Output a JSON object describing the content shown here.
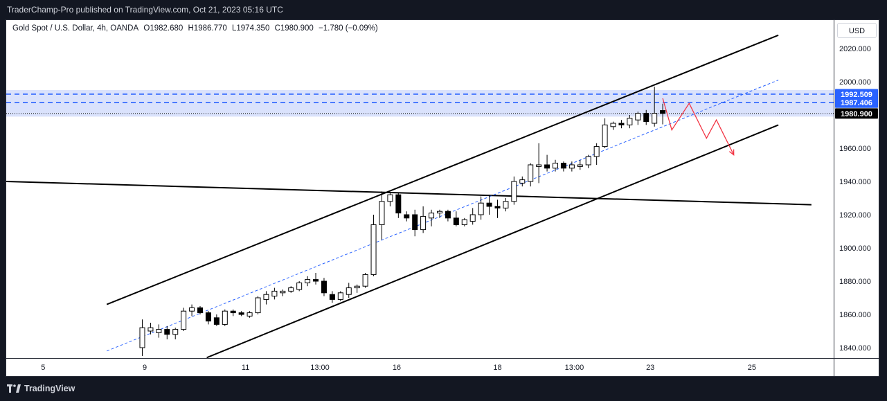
{
  "header": {
    "published_by": "TraderChamp-Pro published on TradingView.com, Oct 21, 2023 05:16 UTC"
  },
  "legend": {
    "symbol": "Gold Spot / U.S. Dollar, 4h, OANDA",
    "open": "O1982.680",
    "high": "H1986.770",
    "low": "L1974.350",
    "close": "C1980.900",
    "change": "−1.780 (−0.09%)"
  },
  "currency": "USD",
  "footer": {
    "brand": "TradingView"
  },
  "colors": {
    "up": "#ffffff",
    "down": "#000000",
    "zone": "#d6dffc",
    "zone_line": "#2962ff",
    "projection": "#f23645",
    "trendline": "#000000",
    "midline": "#2962ff"
  },
  "chart_data": {
    "type": "candlestick",
    "title": "Gold Spot / U.S. Dollar, 4h, OANDA",
    "ylabel": "USD",
    "ylim": [
      1835,
      2032
    ],
    "yticks": [
      "1840.000",
      "1860.000",
      "1880.000",
      "1900.000",
      "1920.000",
      "1940.000",
      "1960.000",
      "1980.000",
      "2000.000",
      "2020.000"
    ],
    "xticks": [
      {
        "label": "5",
        "bar": -12.0
      },
      {
        "label": "9",
        "bar": 0.3
      },
      {
        "label": "11",
        "bar": 12.5
      },
      {
        "label": "13:00",
        "bar": 21.5
      },
      {
        "label": "16",
        "bar": 30.8
      },
      {
        "label": "18",
        "bar": 43.0
      },
      {
        "label": "13:00",
        "bar": 52.3
      },
      {
        "label": "23",
        "bar": 61.5
      },
      {
        "label": "25",
        "bar": 73.8
      }
    ],
    "candles": [
      {
        "o": 1840,
        "h": 1857,
        "l": 1835,
        "c": 1852
      },
      {
        "o": 1850,
        "h": 1855,
        "l": 1848,
        "c": 1852
      },
      {
        "o": 1849,
        "h": 1854,
        "l": 1846,
        "c": 1851
      },
      {
        "o": 1851,
        "h": 1853,
        "l": 1845,
        "c": 1848
      },
      {
        "o": 1848,
        "h": 1852,
        "l": 1845,
        "c": 1851
      },
      {
        "o": 1851,
        "h": 1864,
        "l": 1850,
        "c": 1862
      },
      {
        "o": 1862,
        "h": 1866,
        "l": 1859,
        "c": 1864
      },
      {
        "o": 1864,
        "h": 1865,
        "l": 1860,
        "c": 1861
      },
      {
        "o": 1861,
        "h": 1862,
        "l": 1854,
        "c": 1856
      },
      {
        "o": 1858,
        "h": 1860,
        "l": 1853,
        "c": 1854
      },
      {
        "o": 1854,
        "h": 1863,
        "l": 1853,
        "c": 1862
      },
      {
        "o": 1862,
        "h": 1863,
        "l": 1859,
        "c": 1861
      },
      {
        "o": 1861,
        "h": 1862,
        "l": 1859,
        "c": 1860
      },
      {
        "o": 1859,
        "h": 1862,
        "l": 1858,
        "c": 1861
      },
      {
        "o": 1861,
        "h": 1871,
        "l": 1860,
        "c": 1870
      },
      {
        "o": 1869,
        "h": 1874,
        "l": 1866,
        "c": 1872
      },
      {
        "o": 1871,
        "h": 1876,
        "l": 1869,
        "c": 1874
      },
      {
        "o": 1873,
        "h": 1875,
        "l": 1871,
        "c": 1874
      },
      {
        "o": 1874,
        "h": 1877,
        "l": 1873,
        "c": 1876
      },
      {
        "o": 1875,
        "h": 1880,
        "l": 1874,
        "c": 1879
      },
      {
        "o": 1879,
        "h": 1883,
        "l": 1877,
        "c": 1881
      },
      {
        "o": 1881,
        "h": 1885,
        "l": 1878,
        "c": 1880
      },
      {
        "o": 1880,
        "h": 1882,
        "l": 1871,
        "c": 1873
      },
      {
        "o": 1872,
        "h": 1874,
        "l": 1867,
        "c": 1869
      },
      {
        "o": 1869,
        "h": 1874,
        "l": 1868,
        "c": 1873
      },
      {
        "o": 1872,
        "h": 1879,
        "l": 1870,
        "c": 1876
      },
      {
        "o": 1876,
        "h": 1878,
        "l": 1873,
        "c": 1877
      },
      {
        "o": 1877,
        "h": 1885,
        "l": 1876,
        "c": 1884
      },
      {
        "o": 1884,
        "h": 1920,
        "l": 1883,
        "c": 1914
      },
      {
        "o": 1914,
        "h": 1934,
        "l": 1905,
        "c": 1928
      },
      {
        "o": 1928,
        "h": 1933,
        "l": 1925,
        "c": 1932
      },
      {
        "o": 1932,
        "h": 1933,
        "l": 1918,
        "c": 1921
      },
      {
        "o": 1920,
        "h": 1922,
        "l": 1916,
        "c": 1918
      },
      {
        "o": 1920,
        "h": 1923,
        "l": 1907,
        "c": 1911
      },
      {
        "o": 1911,
        "h": 1925,
        "l": 1909,
        "c": 1919
      },
      {
        "o": 1918,
        "h": 1923,
        "l": 1913,
        "c": 1921
      },
      {
        "o": 1921,
        "h": 1923,
        "l": 1918,
        "c": 1922
      },
      {
        "o": 1922,
        "h": 1923,
        "l": 1916,
        "c": 1918
      },
      {
        "o": 1918,
        "h": 1922,
        "l": 1913,
        "c": 1914
      },
      {
        "o": 1914,
        "h": 1918,
        "l": 1913,
        "c": 1917
      },
      {
        "o": 1916,
        "h": 1924,
        "l": 1914,
        "c": 1920
      },
      {
        "o": 1920,
        "h": 1931,
        "l": 1917,
        "c": 1927
      },
      {
        "o": 1927,
        "h": 1932,
        "l": 1920,
        "c": 1925
      },
      {
        "o": 1925,
        "h": 1929,
        "l": 1918,
        "c": 1924
      },
      {
        "o": 1924,
        "h": 1930,
        "l": 1922,
        "c": 1928
      },
      {
        "o": 1928,
        "h": 1943,
        "l": 1926,
        "c": 1940
      },
      {
        "o": 1939,
        "h": 1943,
        "l": 1937,
        "c": 1941
      },
      {
        "o": 1940,
        "h": 1951,
        "l": 1937,
        "c": 1950
      },
      {
        "o": 1949,
        "h": 1963,
        "l": 1939,
        "c": 1950
      },
      {
        "o": 1950,
        "h": 1956,
        "l": 1946,
        "c": 1948
      },
      {
        "o": 1948,
        "h": 1953,
        "l": 1946,
        "c": 1951
      },
      {
        "o": 1951,
        "h": 1952,
        "l": 1946,
        "c": 1948
      },
      {
        "o": 1948,
        "h": 1952,
        "l": 1946,
        "c": 1950
      },
      {
        "o": 1949,
        "h": 1953,
        "l": 1947,
        "c": 1950
      },
      {
        "o": 1950,
        "h": 1956,
        "l": 1948,
        "c": 1955
      },
      {
        "o": 1955,
        "h": 1963,
        "l": 1950,
        "c": 1961
      },
      {
        "o": 1961,
        "h": 1978,
        "l": 1960,
        "c": 1974
      },
      {
        "o": 1973,
        "h": 1976,
        "l": 1971,
        "c": 1975
      },
      {
        "o": 1975,
        "h": 1977,
        "l": 1972,
        "c": 1974
      },
      {
        "o": 1974,
        "h": 1980,
        "l": 1972,
        "c": 1978
      },
      {
        "o": 1977,
        "h": 1982,
        "l": 1974,
        "c": 1981
      },
      {
        "o": 1981,
        "h": 1983,
        "l": 1974,
        "c": 1976
      },
      {
        "o": 1975,
        "h": 1997,
        "l": 1973,
        "c": 1981
      },
      {
        "o": 1982.68,
        "h": 1986.77,
        "l": 1974.35,
        "c": 1980.9
      }
    ],
    "annotations": {
      "resistance_zone": {
        "top": 1995,
        "bottom": 1979
      },
      "levels": [
        {
          "value": 1992.509,
          "label": "1992.509",
          "bg": "#2962ff",
          "fg": "#ffffff"
        },
        {
          "value": 1987.406,
          "label": "1987.406",
          "bg": "#2962ff",
          "fg": "#ffffff"
        },
        {
          "value": 1980.9,
          "label": "1980.900",
          "bg": "#000000",
          "fg": "#ffffff"
        }
      ],
      "channel_upper": {
        "from_bar": -4.3,
        "from": 1866,
        "to_bar": 77.0,
        "to": 2028
      },
      "channel_lower": {
        "from_bar": 7.8,
        "from": 1834,
        "to_bar": 77.0,
        "to": 1974
      },
      "channel_mid": {
        "from_bar": -4.3,
        "from": 1838,
        "to_bar": 77.0,
        "to": 2001
      },
      "horizontal_trendline": {
        "from_bar": -16.5,
        "from": 1940,
        "to_bar": 81.0,
        "to": 1926
      },
      "projection_path": [
        {
          "bar": 63.0,
          "value": 1990
        },
        {
          "bar": 64.1,
          "value": 1971
        },
        {
          "bar": 66.2,
          "value": 1987
        },
        {
          "bar": 68.3,
          "value": 1966
        },
        {
          "bar": 69.5,
          "value": 1977
        },
        {
          "bar": 71.6,
          "value": 1956
        }
      ]
    }
  }
}
